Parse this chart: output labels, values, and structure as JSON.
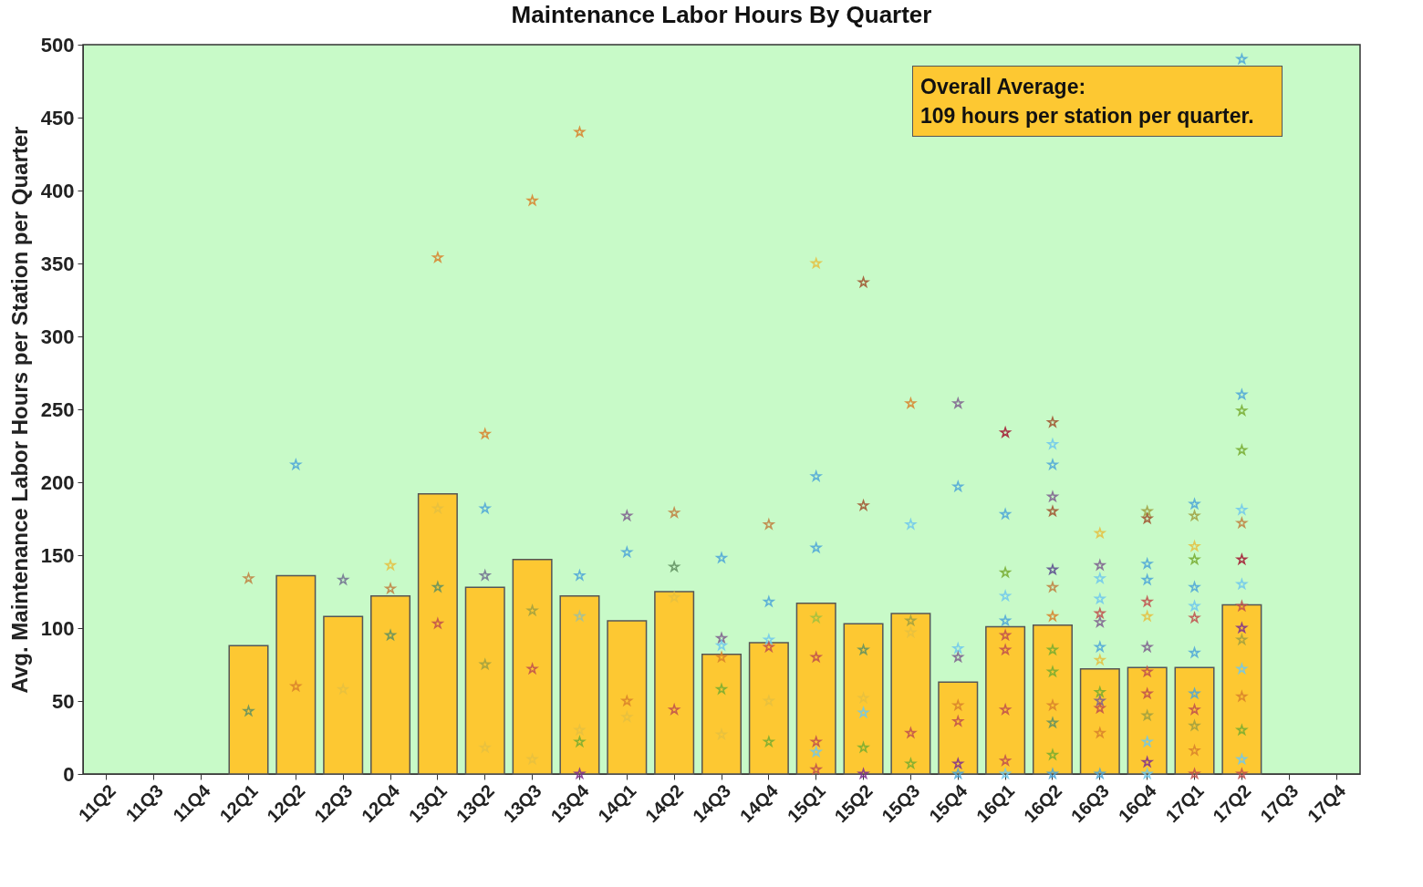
{
  "chart_data": {
    "type": "bar",
    "title": "Maintenance Labor Hours By Quarter",
    "ylabel": "Avg. Maintenance Labor Hours per Station per Quarter",
    "categories": [
      "11Q2",
      "11Q3",
      "11Q4",
      "12Q1",
      "12Q2",
      "12Q3",
      "12Q4",
      "13Q1",
      "13Q2",
      "13Q3",
      "13Q4",
      "14Q1",
      "14Q2",
      "14Q3",
      "14Q4",
      "15Q1",
      "15Q2",
      "15Q3",
      "15Q4",
      "16Q1",
      "16Q2",
      "16Q3",
      "16Q4",
      "17Q1",
      "17Q2",
      "17Q3",
      "17Q4"
    ],
    "ylim": [
      0,
      500
    ],
    "yticks": [
      0,
      50,
      100,
      150,
      200,
      250,
      300,
      350,
      400,
      450,
      500
    ],
    "grid": false,
    "marker": "star",
    "annotations": [
      "Overall Average:\n109 hours per station per quarter."
    ],
    "series": [
      {
        "color": "#fdc832",
        "values": [
          null,
          null,
          null,
          88,
          136,
          108,
          122,
          192,
          128,
          147,
          122,
          105,
          125,
          82,
          90,
          117,
          103,
          110,
          63,
          101,
          102,
          72,
          73,
          73,
          116,
          null,
          null
        ]
      },
      {
        "type": "scatter",
        "x": [
          "12Q1",
          "12Q1",
          "12Q2",
          "12Q2",
          "12Q3",
          "12Q3",
          "12Q4",
          "12Q4",
          "12Q4",
          "13Q1",
          "13Q1",
          "13Q1",
          "13Q1",
          "13Q2",
          "13Q2",
          "13Q2",
          "13Q2",
          "13Q2",
          "13Q3",
          "13Q3",
          "13Q3",
          "13Q3",
          "13Q4",
          "13Q4",
          "13Q4",
          "13Q4",
          "13Q4",
          "13Q4",
          "14Q1",
          "14Q1",
          "14Q1",
          "14Q1",
          "14Q2",
          "14Q2",
          "14Q2",
          "14Q2",
          "14Q3",
          "14Q3",
          "14Q3",
          "14Q3",
          "14Q3",
          "14Q3",
          "14Q4",
          "14Q4",
          "14Q4",
          "14Q4",
          "14Q4",
          "14Q4",
          "15Q1",
          "15Q1",
          "15Q1",
          "15Q1",
          "15Q1",
          "15Q1",
          "15Q1",
          "15Q1",
          "15Q2",
          "15Q2",
          "15Q2",
          "15Q2",
          "15Q2",
          "15Q2",
          "15Q2",
          "15Q3",
          "15Q3",
          "15Q3",
          "15Q3",
          "15Q3",
          "15Q3",
          "15Q4",
          "15Q4",
          "15Q4",
          "15Q4",
          "15Q4",
          "15Q4",
          "15Q4",
          "15Q4",
          "16Q1",
          "16Q1",
          "16Q1",
          "16Q1",
          "16Q1",
          "16Q1",
          "16Q1",
          "16Q1",
          "16Q1",
          "16Q1",
          "16Q2",
          "16Q2",
          "16Q2",
          "16Q2",
          "16Q2",
          "16Q2",
          "16Q2",
          "16Q2",
          "16Q2",
          "16Q2",
          "16Q2",
          "16Q2",
          "16Q2",
          "16Q2",
          "16Q3",
          "16Q3",
          "16Q3",
          "16Q3",
          "16Q3",
          "16Q3",
          "16Q3",
          "16Q3",
          "16Q3",
          "16Q3",
          "16Q3",
          "16Q3",
          "16Q3",
          "16Q4",
          "16Q4",
          "16Q4",
          "16Q4",
          "16Q4",
          "16Q4",
          "16Q4",
          "16Q4",
          "16Q4",
          "16Q4",
          "16Q4",
          "16Q4",
          "16Q4",
          "17Q1",
          "17Q1",
          "17Q1",
          "17Q1",
          "17Q1",
          "17Q1",
          "17Q1",
          "17Q1",
          "17Q1",
          "17Q1",
          "17Q1",
          "17Q1",
          "17Q1",
          "17Q2",
          "17Q2",
          "17Q2",
          "17Q2",
          "17Q2",
          "17Q2",
          "17Q2",
          "17Q2",
          "17Q2",
          "17Q2",
          "17Q2",
          "17Q2",
          "17Q2",
          "17Q2",
          "17Q2",
          "17Q2"
        ],
        "values": [
          134,
          43,
          212,
          60,
          133,
          58,
          143,
          127,
          95,
          354,
          182,
          128,
          103,
          233,
          182,
          136,
          75,
          18,
          393,
          112,
          72,
          10,
          440,
          136,
          108,
          30,
          22,
          0,
          177,
          152,
          50,
          39,
          179,
          142,
          121,
          44,
          148,
          93,
          88,
          80,
          58,
          27,
          171,
          118,
          92,
          87,
          50,
          22,
          350,
          204,
          155,
          107,
          80,
          22,
          15,
          3,
          337,
          184,
          85,
          52,
          42,
          18,
          0,
          254,
          171,
          105,
          97,
          28,
          7,
          254,
          197,
          86,
          80,
          47,
          36,
          7,
          0,
          234,
          178,
          138,
          122,
          105,
          95,
          85,
          44,
          9,
          0,
          241,
          226,
          212,
          190,
          180,
          140,
          128,
          108,
          85,
          70,
          47,
          35,
          13,
          0,
          165,
          143,
          134,
          120,
          110,
          104,
          87,
          78,
          56,
          50,
          45,
          28,
          0,
          180,
          175,
          144,
          133,
          118,
          108,
          87,
          70,
          55,
          40,
          22,
          8,
          0,
          185,
          177,
          156,
          147,
          128,
          115,
          107,
          83,
          55,
          44,
          33,
          16,
          0,
          490,
          260,
          249,
          222,
          181,
          172,
          147,
          130,
          115,
          100,
          92,
          72,
          53,
          30,
          10,
          0
        ],
        "colors": [
          "#c08040",
          "#609060",
          "#4da6d9",
          "#d9822b",
          "#707090",
          "#e6c040",
          "#e6c040",
          "#c08040",
          "#609060",
          "#d9822b",
          "#e6c040",
          "#609060",
          "#c0504d",
          "#d9822b",
          "#4da6d9",
          "#707090",
          "#a0a040",
          "#e6c040",
          "#d9822b",
          "#a0a040",
          "#c0504d",
          "#e6c040",
          "#d9822b",
          "#4da6d9",
          "#a0c0a0",
          "#e6c040",
          "#77ac30",
          "#7e2f8e",
          "#7e5f8e",
          "#4da6d9",
          "#d9822b",
          "#e6c040",
          "#c08040",
          "#609060",
          "#e6c040",
          "#c0504d",
          "#4da6d9",
          "#7e5f8e",
          "#6fc8ee",
          "#d9822b",
          "#77ac30",
          "#e6c040",
          "#c08040",
          "#4da6d9",
          "#6fc8ee",
          "#c0504d",
          "#e6c040",
          "#77ac30",
          "#e6c040",
          "#4da6d9",
          "#4da6d9",
          "#a0c040",
          "#c0504d",
          "#c0504d",
          "#6fc8ee",
          "#c0504d",
          "#a0522d",
          "#a0522d",
          "#609060",
          "#e6c040",
          "#6fc8ee",
          "#77ac30",
          "#7e2f8e",
          "#d9822b",
          "#6fc8ee",
          "#a0a040",
          "#e6c040",
          "#c0504d",
          "#77ac30",
          "#7e5f8e",
          "#4da6d9",
          "#6fc8ee",
          "#7e5f8e",
          "#d9822b",
          "#c0504d",
          "#7e2f8e",
          "#4da6d9",
          "#a2142f",
          "#4da6d9",
          "#77ac30",
          "#6fc8ee",
          "#4da6d9",
          "#c0504d",
          "#c0504d",
          "#c0504d",
          "#c0504d",
          "#6fc8ee",
          "#a0522d",
          "#6fc8ee",
          "#4da6d9",
          "#7e5f8e",
          "#a0522d",
          "#5a4a8e",
          "#c08040",
          "#d9822b",
          "#77ac30",
          "#77ac30",
          "#d9822b",
          "#609060",
          "#77ac30",
          "#4da6d9",
          "#e6c040",
          "#7e5f8e",
          "#6fc8ee",
          "#6fc8ee",
          "#c0504d",
          "#7e5f8e",
          "#4da6d9",
          "#e6c040",
          "#77ac30",
          "#7e5f8e",
          "#c0504d",
          "#d9822b",
          "#4da6d9",
          "#a0a040",
          "#a0522d",
          "#4da6d9",
          "#4da6d9",
          "#c0504d",
          "#e6c040",
          "#7e5f8e",
          "#c0504d",
          "#c0504d",
          "#a0a040",
          "#6fc8ee",
          "#7e2f8e",
          "#6fc8ee",
          "#4da6d9",
          "#a0a040",
          "#e6c040",
          "#77ac30",
          "#4da6d9",
          "#6fc8ee",
          "#c0504d",
          "#4da6d9",
          "#4da6d9",
          "#c0504d",
          "#a0a040",
          "#d9822b",
          "#c0504d",
          "#4da6d9",
          "#4da6d9",
          "#77ac30",
          "#77ac30",
          "#6fc8ee",
          "#c08040",
          "#a2142f",
          "#6fc8ee",
          "#c0504d",
          "#7e2f8e",
          "#a0a040",
          "#6fc8ee",
          "#d9822b",
          "#77ac30",
          "#6fc8ee",
          "#c0504d"
        ]
      }
    ]
  }
}
